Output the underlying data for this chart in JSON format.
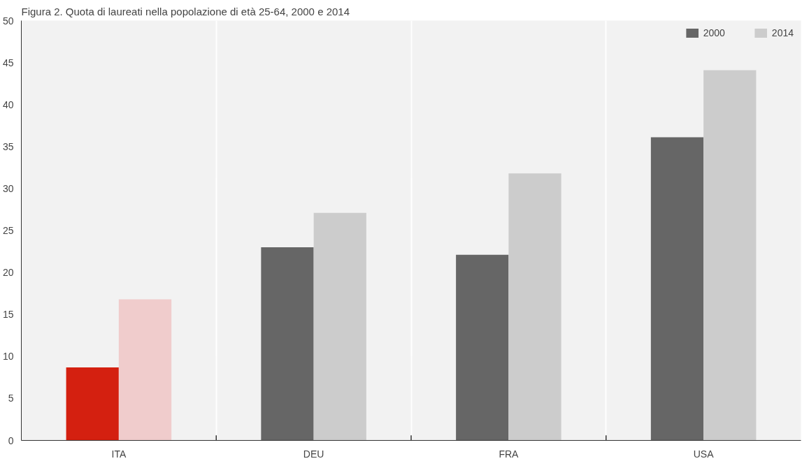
{
  "chart_data": {
    "type": "bar",
    "title": "Figura 2. Quota di laureati nella popolazione di età 25-64, 2000 e 2014",
    "categories": [
      "ITA",
      "DEU",
      "FRA",
      "USA"
    ],
    "series": [
      {
        "name": "2000",
        "color": "#666666",
        "colors": [
          "#d42010",
          "#666666",
          "#666666",
          "#666666"
        ],
        "values": [
          8.7,
          23.0,
          22.1,
          36.1
        ]
      },
      {
        "name": "2014",
        "color": "#cccccc",
        "colors": [
          "#f0cccc",
          "#cccccc",
          "#cccccc",
          "#cccccc"
        ],
        "values": [
          16.8,
          27.1,
          31.8,
          44.1
        ]
      }
    ],
    "ylim": [
      0,
      50
    ],
    "yticks": [
      0,
      5,
      10,
      15,
      20,
      25,
      30,
      35,
      40,
      45,
      50
    ],
    "grid": "x",
    "legend": "top right"
  }
}
